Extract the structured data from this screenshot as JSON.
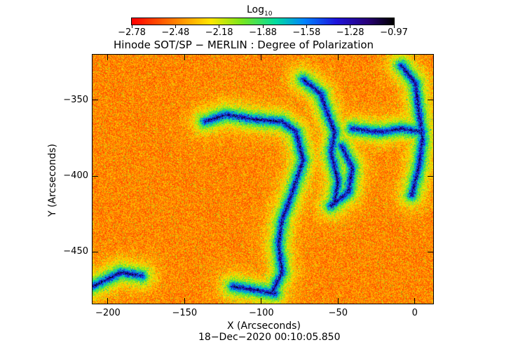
{
  "colorbar": {
    "label_main": "Log",
    "label_sub": "10",
    "ticks": [
      "−2.78",
      "−2.48",
      "−2.18",
      "−1.88",
      "−1.58",
      "−1.28",
      "−0.97"
    ]
  },
  "plot": {
    "title": "Hinode SOT/SP − MERLIN : Degree of Polarization",
    "xlabel": "X (Arcseconds)",
    "ylabel": "Y (Arcseconds)",
    "timestamp": "18−Dec−2020 00:10:05.850"
  },
  "chart_data": {
    "type": "heatmap",
    "title": "Hinode SOT/SP − MERLIN : Degree of Polarization",
    "xlabel": "X (Arcseconds)",
    "ylabel": "Y (Arcseconds)",
    "xlim": [
      -210,
      12
    ],
    "ylim": [
      -484,
      -320
    ],
    "x_ticks": [
      -200,
      -150,
      -100,
      -50,
      0
    ],
    "y_ticks": [
      -350,
      -400,
      -450
    ],
    "colorscale": "rainbow (red → yellow → green → cyan → blue → black)",
    "color_range_log10": [
      -2.78,
      -0.97
    ],
    "colorbar_ticks": [
      -2.78,
      -2.48,
      -2.18,
      -1.88,
      -1.58,
      -1.28,
      -0.97
    ]
  }
}
